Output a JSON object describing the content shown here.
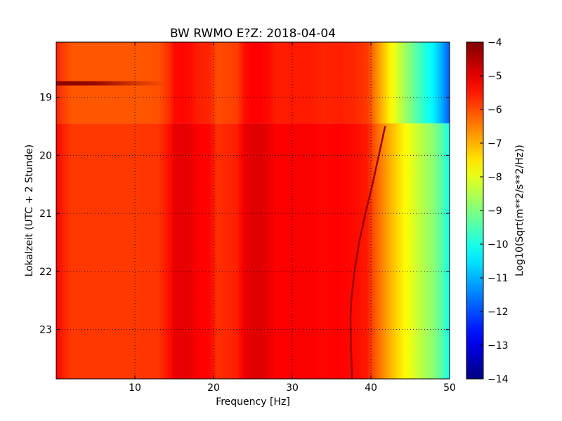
{
  "chart_data": {
    "type": "heatmap",
    "title": "BW RWMO E?Z: 2018-04-04",
    "xlabel": "Frequency [Hz]",
    "ylabel": "Lokalzeit (UTC + 2 Stunde)",
    "xlim": [
      0,
      50
    ],
    "ylim": [
      18.05,
      23.85
    ],
    "y_inverted": true,
    "xticks": [
      10,
      20,
      30,
      40,
      50
    ],
    "yticks": [
      19,
      20,
      21,
      22,
      23
    ],
    "grid": true,
    "colormap": "jet",
    "colorbar": {
      "label": "Log10(Sqrt(m**2/s**2/Hz))",
      "range": [
        -14,
        -4
      ],
      "ticks": [
        -4,
        -5,
        -6,
        -7,
        -8,
        -9,
        -10,
        -11,
        -12,
        -13,
        -14
      ]
    },
    "z_units": "Log10(Sqrt(m**2/s**2/Hz))",
    "spectrum_profile": {
      "frequency_hz": [
        0,
        1,
        2,
        5,
        10,
        13,
        14.5,
        15,
        16,
        17,
        18,
        19.5,
        20.5,
        23,
        24,
        25,
        26,
        27,
        28,
        30,
        32,
        34,
        36,
        38,
        39.5,
        40.5,
        42,
        44,
        46,
        47,
        48,
        49,
        50
      ],
      "level": [
        -5.3,
        -5.6,
        -5.8,
        -5.8,
        -5.8,
        -5.75,
        -5.35,
        -5.05,
        -5.0,
        -5.05,
        -5.25,
        -5.3,
        -5.7,
        -5.55,
        -5.05,
        -4.95,
        -4.95,
        -5.05,
        -5.25,
        -5.2,
        -5.2,
        -5.3,
        -5.25,
        -5.35,
        -5.5,
        -6.1,
        -6.8,
        -7.6,
        -8.3,
        -8.6,
        -8.9,
        -9.4,
        -10.1
      ]
    },
    "time_segments": [
      {
        "start_hour": 18.05,
        "end_hour": 19.45,
        "level_offset": -0.3,
        "high_freq_extra_drop": -1.5
      },
      {
        "start_hour": 19.45,
        "end_hour": 23.85,
        "level_offset": 0.0,
        "high_freq_extra_drop": 0.0
      }
    ],
    "features": [
      {
        "type": "drifting_line",
        "time_hour": [
          19.5,
          20.0,
          20.5,
          21.0,
          21.5,
          22.0,
          22.5,
          22.8,
          23.2,
          23.85
        ],
        "frequency_hz": [
          41.8,
          41.0,
          40.2,
          39.3,
          38.5,
          37.9,
          37.5,
          37.4,
          37.45,
          37.6
        ],
        "level": -4.3
      },
      {
        "type": "transient_band",
        "time_hour": 18.76,
        "frequency_hz": [
          0,
          14
        ],
        "level": -4.1
      }
    ]
  }
}
